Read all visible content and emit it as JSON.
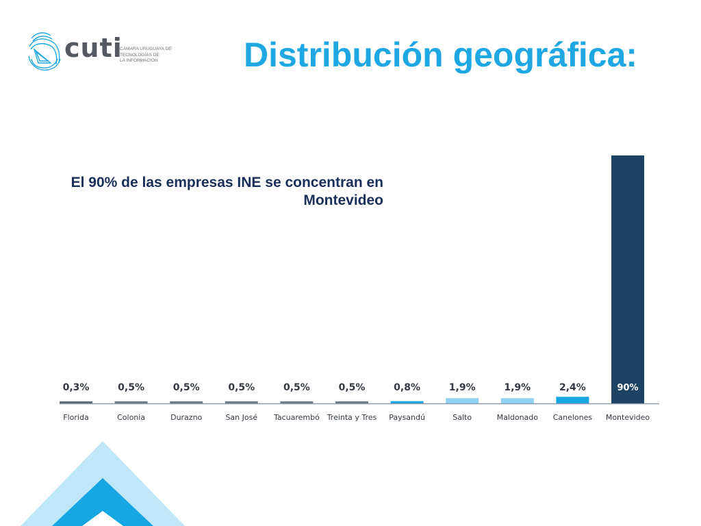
{
  "logo": {
    "wordmark": "cuti",
    "tagline": "CÁMARA URUGUAYA DE\nTECNOLOGÍAS DE\nLA INFORMACIÓN"
  },
  "title": "Distribución geográfica:",
  "annotation": "El 90% de las empresas INE se concentran en Montevideo",
  "colors": {
    "title": "#1ea7e2",
    "annotation": "#1a2f58",
    "bar_dark_gray": "#6b7b86",
    "bar_blue": "#16a6e1",
    "bar_light_blue": "#8fd3f0",
    "bar_navy": "#1c4264",
    "axis": "#8a9aa8",
    "label_text": "#333842"
  },
  "chart_data": {
    "type": "bar",
    "categories": [
      "Florida",
      "Colonia",
      "Durazno",
      "San José",
      "Tacuarembó",
      "Treinta y Tres",
      "Paysandú",
      "Salto",
      "Maldonado",
      "Canelones",
      "Montevideo"
    ],
    "values": [
      0.3,
      0.5,
      0.5,
      0.5,
      0.5,
      0.5,
      0.8,
      1.9,
      1.9,
      2.4,
      90
    ],
    "value_labels": [
      "0,3%",
      "0,5%",
      "0,5%",
      "0,5%",
      "0,5%",
      "0,5%",
      "0,8%",
      "1,9%",
      "1,9%",
      "2,4%",
      "90%"
    ],
    "bar_colors": [
      "#5d6b75",
      "#6b7b86",
      "#6b7b86",
      "#6b7b86",
      "#6b7b86",
      "#6b7b86",
      "#16a6e1",
      "#8fd3f0",
      "#8fd3f0",
      "#16a6e1",
      "#1c4264"
    ],
    "value_label_colors": [
      "#333842",
      "#333842",
      "#333842",
      "#333842",
      "#333842",
      "#333842",
      "#333842",
      "#333842",
      "#333842",
      "#333842",
      "#ffffff"
    ],
    "unit": "%",
    "ylim": [
      0,
      90
    ],
    "grid": false,
    "legend": "none",
    "title": "",
    "xlabel": "",
    "ylabel": ""
  }
}
